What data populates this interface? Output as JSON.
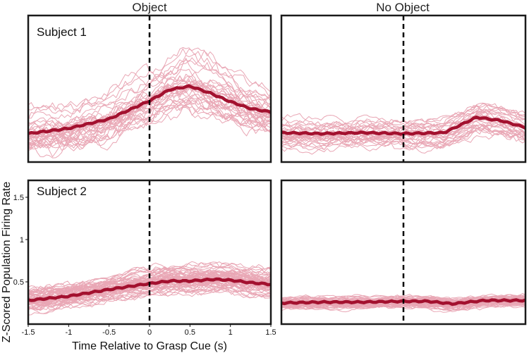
{
  "colors": {
    "individual_trace": "#e9a7b5",
    "mean_trace": "#a3112f",
    "cue_line": "#000000",
    "frame": "#1a1a1a"
  },
  "chart_data": {
    "type": "line",
    "column_titles": [
      "Object",
      "No Object"
    ],
    "xlabel": "Time Relative to Grasp Cue (s)",
    "ylabel": "Z-Scored Population Firing Rate",
    "x_ticks": [
      "-1.5",
      "-1",
      "-0.5",
      "0",
      "0.5",
      "1",
      "1.5"
    ],
    "y_ticks": [
      "0.5",
      "1",
      "1.5"
    ],
    "xlim": [
      -1.5,
      1.5
    ],
    "ylim": [
      0,
      1.7
    ],
    "cue_time": 0,
    "panels": [
      {
        "row_label": "Subject 1",
        "condition": "Object",
        "n_traces": 34,
        "trace_spread": 0.26,
        "mean": {
          "x": [
            -1.5,
            -1.0,
            -0.5,
            0.0,
            0.25,
            0.5,
            0.75,
            1.0,
            1.25,
            1.5
          ],
          "y": [
            0.33,
            0.39,
            0.5,
            0.71,
            0.84,
            0.88,
            0.8,
            0.7,
            0.62,
            0.58
          ]
        }
      },
      {
        "row_label": "",
        "condition": "No Object",
        "n_traces": 30,
        "trace_spread": 0.16,
        "mean": {
          "x": [
            -1.5,
            -1.0,
            -0.5,
            0.0,
            0.5,
            0.9,
            1.2,
            1.5
          ],
          "y": [
            0.34,
            0.33,
            0.34,
            0.33,
            0.34,
            0.52,
            0.48,
            0.4
          ]
        }
      },
      {
        "row_label": "Subject 2",
        "condition": "Object",
        "n_traces": 60,
        "trace_spread": 0.13,
        "mean": {
          "x": [
            -1.5,
            -1.0,
            -0.5,
            0.0,
            0.25,
            0.5,
            0.8,
            1.0,
            1.25,
            1.5
          ],
          "y": [
            0.28,
            0.33,
            0.41,
            0.48,
            0.51,
            0.51,
            0.53,
            0.52,
            0.49,
            0.47
          ]
        }
      },
      {
        "row_label": "",
        "condition": "No Object",
        "n_traces": 55,
        "trace_spread": 0.07,
        "mean": {
          "x": [
            -1.5,
            -1.0,
            -0.5,
            0.0,
            0.3,
            0.6,
            1.0,
            1.5
          ],
          "y": [
            0.25,
            0.26,
            0.26,
            0.27,
            0.27,
            0.24,
            0.28,
            0.28
          ]
        }
      }
    ]
  }
}
